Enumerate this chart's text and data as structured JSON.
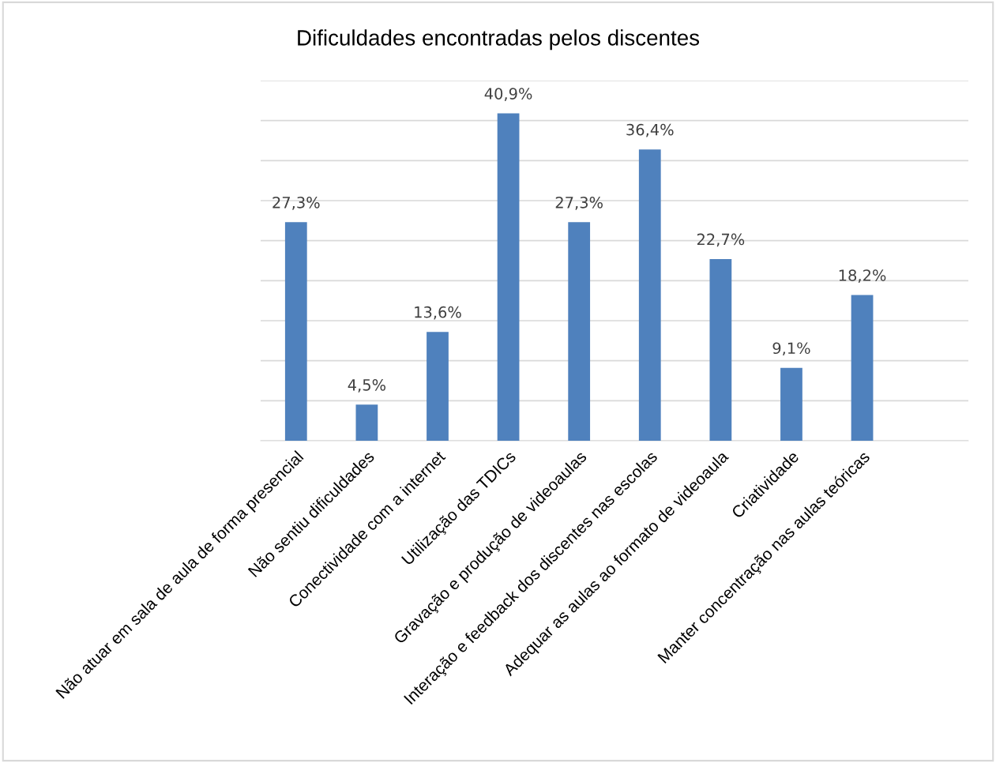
{
  "chart_data": {
    "type": "bar",
    "title": "Dificuldades encontradas pelos discentes",
    "categories": [
      "Não atuar em sala de aula de forma presencial",
      "Não sentiu dificuldades",
      "Conectividade com a internet",
      "Utilização das TDICs",
      "Gravação e produção de videoaulas",
      "Interação e feedback dos discentes nas escolas",
      "Adequar as aulas ao formato de videoaula",
      "Criatividade",
      "Manter concentração nas aulas teóricas",
      null
    ],
    "values": [
      27.3,
      4.5,
      13.6,
      40.9,
      27.3,
      36.4,
      22.7,
      9.1,
      18.2,
      null
    ],
    "value_labels": [
      "27,3%",
      "4,5%",
      "13,6%",
      "40,9%",
      "27,3%",
      "36,4%",
      "22,7%",
      "9,1%",
      "18,2%",
      null
    ],
    "color": "#4f81bd",
    "ylim": [
      0,
      45
    ],
    "yticks": [
      {
        "value": 0,
        "label": null
      },
      {
        "value": 5,
        "label": null
      },
      {
        "value": 10,
        "label": null
      },
      {
        "value": 15,
        "label": null
      },
      {
        "value": 20,
        "label": null
      },
      {
        "value": 25,
        "label": null
      },
      {
        "value": 30,
        "label": null
      },
      {
        "value": 35,
        "label": null
      },
      {
        "value": 40,
        "label": null
      },
      {
        "value": 45,
        "label": null
      }
    ],
    "grid": "y",
    "tick_labels": "x",
    "legend": false
  }
}
